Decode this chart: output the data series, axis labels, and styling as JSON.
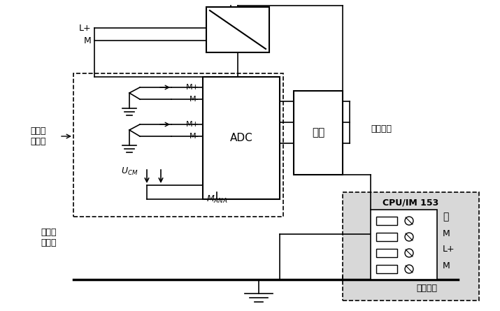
{
  "title": "",
  "bg_color": "#ffffff",
  "text_color": "#000000",
  "labels": {
    "L_plus": "L+",
    "M": "M",
    "M_plus": "M+",
    "M_minus": "M-",
    "ADC": "ADC",
    "logic": "逻辑",
    "backplane": "背板总线",
    "sensor": "非隔离\n传感器",
    "UCM": "U",
    "CM": "CM",
    "MANA": "M",
    "ANA": "ANA",
    "equi": "等电位\n连接线",
    "ground_bus": "接地干线",
    "cpu": "CPU/IM 153",
    "cpu_labels": [
      "M",
      "L+",
      "M"
    ]
  },
  "colors": {
    "dashed_box": "#000000",
    "cpu_bg": "#d0d0d0",
    "line": "#000000",
    "box": "#ffffff",
    "ground_bus": "#000000"
  }
}
